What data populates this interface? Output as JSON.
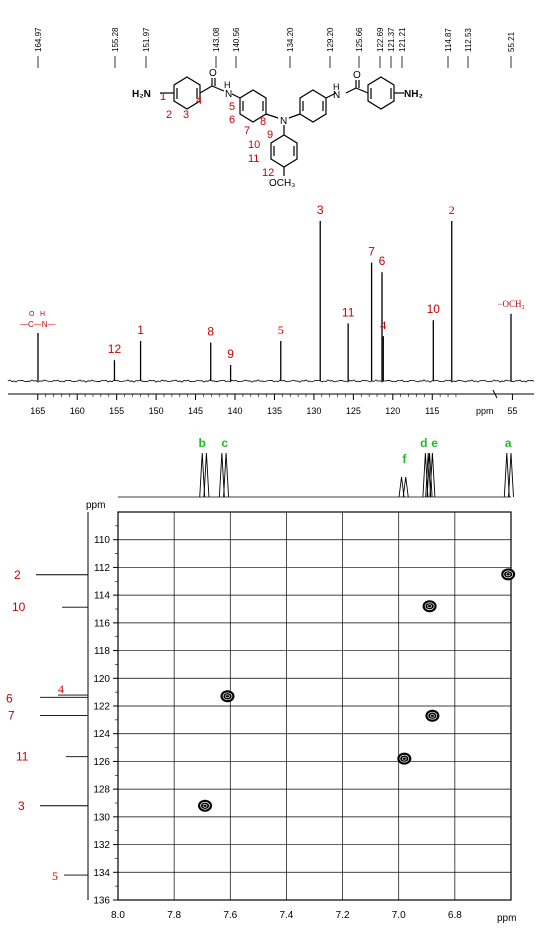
{
  "colors": {
    "peak_label": "#cc0000",
    "h_label": "#22bb22",
    "axis": "#000000"
  },
  "structure": {
    "left_nh2": "H₂N",
    "right_nh2": "NH₂",
    "carbonyl_o": "O",
    "amide_h": "H",
    "amide_n": "N",
    "central_n": "N",
    "methoxy": "OCH₃",
    "numbers": [
      "1",
      "2",
      "3",
      "4",
      "5",
      "6",
      "7",
      "8",
      "9",
      "10",
      "11",
      "12"
    ]
  },
  "chart_data": [
    {
      "type": "line",
      "kind": "13C NMR spectrum",
      "xlabel": "ppm",
      "x_reversed": true,
      "xlim": [
        167,
        53
      ],
      "x_axis_break": [
        110,
        56
      ],
      "xticks": [
        165,
        160,
        155,
        150,
        145,
        140,
        135,
        130,
        125,
        120,
        115,
        55
      ],
      "top_shift_labels": [
        "164.97",
        "155.28",
        "151.97",
        "143.08",
        "140.56",
        "134.20",
        "129.20",
        "125.66",
        "122.69",
        "121.37",
        "121.21",
        "114.87",
        "112.53",
        "55.21"
      ],
      "peaks": [
        {
          "ppm": 164.97,
          "rel_height": 0.3,
          "label": "—C—N—",
          "label_type": "amide"
        },
        {
          "ppm": 155.28,
          "rel_height": 0.13,
          "label": "12"
        },
        {
          "ppm": 151.97,
          "rel_height": 0.25,
          "label": "1"
        },
        {
          "ppm": 143.08,
          "rel_height": 0.24,
          "label": "8"
        },
        {
          "ppm": 140.56,
          "rel_height": 0.1,
          "label": "9"
        },
        {
          "ppm": 134.2,
          "rel_height": 0.25,
          "label": "5"
        },
        {
          "ppm": 129.2,
          "rel_height": 1.0,
          "label": "3"
        },
        {
          "ppm": 125.66,
          "rel_height": 0.36,
          "label": "11"
        },
        {
          "ppm": 122.69,
          "rel_height": 0.74,
          "label": "7"
        },
        {
          "ppm": 121.37,
          "rel_height": 0.68,
          "label": "6"
        },
        {
          "ppm": 121.21,
          "rel_height": 0.28,
          "label": "4"
        },
        {
          "ppm": 114.87,
          "rel_height": 0.38,
          "label": "10"
        },
        {
          "ppm": 112.53,
          "rel_height": 1.0,
          "label": "2"
        },
        {
          "ppm": 55.21,
          "rel_height": 0.42,
          "label": "−OCH₃"
        }
      ]
    },
    {
      "type": "scatter",
      "kind": "HSQC 2D NMR",
      "x_unit_label": "ppm",
      "y_unit_label": "ppm",
      "x_reversed": true,
      "xlim": [
        8.0,
        6.6
      ],
      "ylim": [
        108,
        136
      ],
      "xticks": [
        "8.0",
        "7.8",
        "7.6",
        "7.4",
        "7.2",
        "7.0",
        "6.8"
      ],
      "yticks": [
        "110",
        "112",
        "114",
        "116",
        "118",
        "120",
        "122",
        "124",
        "126",
        "128",
        "130",
        "132",
        "134",
        "136"
      ],
      "h_peaks": [
        {
          "label": "b",
          "ppm": 7.7
        },
        {
          "label": "c",
          "ppm": 7.62
        },
        {
          "label": "f",
          "ppm": 6.98
        },
        {
          "label": "d",
          "ppm": 6.9
        },
        {
          "label": "e",
          "ppm": 6.89
        },
        {
          "label": "a",
          "ppm": 6.61
        }
      ],
      "c_labels": [
        {
          "label": "2",
          "ppm": 112.53
        },
        {
          "label": "10",
          "ppm": 114.87
        },
        {
          "label": "4",
          "ppm": 121.21
        },
        {
          "label": "6",
          "ppm": 121.37
        },
        {
          "label": "7",
          "ppm": 122.69
        },
        {
          "label": "11",
          "ppm": 125.66
        },
        {
          "label": "3",
          "ppm": 129.2
        },
        {
          "label": "5",
          "ppm": 134.2
        }
      ],
      "cross_peaks": [
        {
          "h": 6.61,
          "c": 112.5
        },
        {
          "h": 6.89,
          "c": 114.8
        },
        {
          "h": 7.61,
          "c": 121.3
        },
        {
          "h": 6.88,
          "c": 122.7
        },
        {
          "h": 6.98,
          "c": 125.8
        },
        {
          "h": 7.69,
          "c": 129.2
        }
      ]
    }
  ]
}
